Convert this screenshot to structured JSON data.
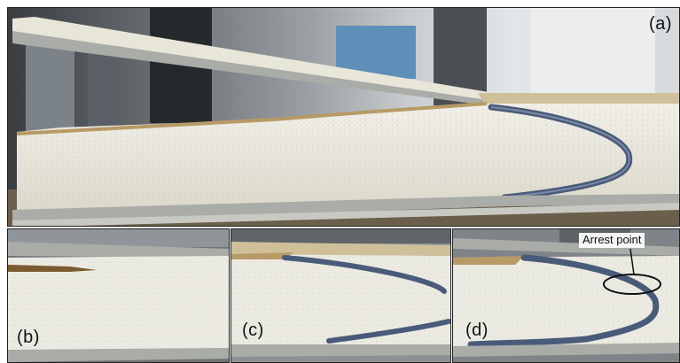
{
  "panels": {
    "a": {
      "label": "(a)"
    },
    "b": {
      "label": "(b)"
    },
    "c": {
      "label": "(c)"
    },
    "d": {
      "label": "(d)",
      "annotation": "Arrest point"
    }
  },
  "colors": {
    "foam": "#ecebe3",
    "foam_shadow": "#d9d6c8",
    "face_sheet": "#a9aca7",
    "adhesive_tan": "#b89a66",
    "crack_line": "#4a5b7a",
    "background_dark": "#3c3f42",
    "background_metal": "#8e959a",
    "annotation_ring": "#111111"
  }
}
